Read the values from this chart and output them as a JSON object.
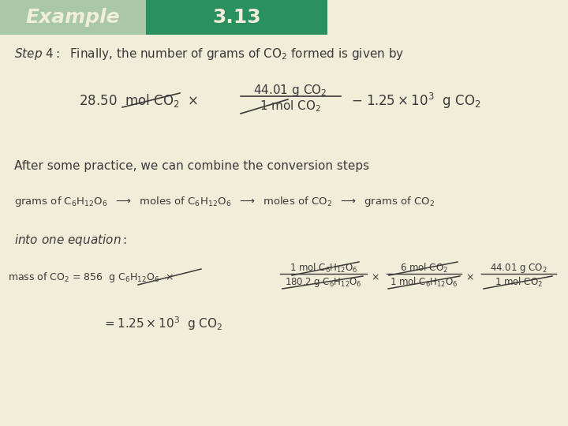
{
  "bg_color": "#f0edd8",
  "header_left_color": "#a8c8a8",
  "header_right_color": "#2a9060",
  "header_text_color": "#f0edd8",
  "body_text_color": "#3a3a3a",
  "figsize": [
    7.2,
    5.4
  ],
  "dpi": 100
}
